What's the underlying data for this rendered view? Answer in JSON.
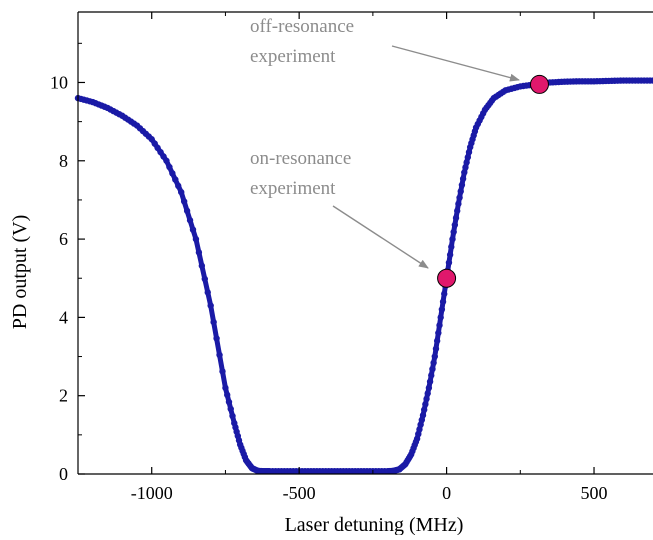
{
  "chart_data": {
    "type": "scatter",
    "title": "",
    "xlabel": "Laser detuning (MHz)",
    "ylabel": "PD output (V)",
    "xlim": [
      -1250,
      700
    ],
    "ylim": [
      0,
      11.8
    ],
    "x_ticks": [
      -1000,
      -500,
      0,
      500
    ],
    "x_tick_labels": [
      "-1000",
      "-500",
      "0",
      "500"
    ],
    "y_ticks": [
      0,
      2,
      4,
      6,
      8,
      10
    ],
    "y_tick_labels": [
      "0",
      "2",
      "4",
      "6",
      "8",
      "10"
    ],
    "grid": false,
    "legend": "none",
    "series": [
      {
        "color": "#1a1aa6",
        "marker": "dot",
        "x": [
          -1250,
          -1200,
          -1150,
          -1100,
          -1050,
          -1000,
          -950,
          -900,
          -850,
          -800,
          -750,
          -720,
          -700,
          -680,
          -660,
          -640,
          -620,
          -600,
          -550,
          -500,
          -450,
          -400,
          -350,
          -300,
          -250,
          -200,
          -180,
          -160,
          -140,
          -120,
          -100,
          -80,
          -60,
          -40,
          -20,
          0,
          20,
          40,
          60,
          80,
          100,
          130,
          160,
          200,
          250,
          300,
          350,
          400,
          450,
          500,
          550,
          600,
          650,
          700
        ],
        "y": [
          9.6,
          9.5,
          9.35,
          9.15,
          8.9,
          8.55,
          8.0,
          7.2,
          6.0,
          4.3,
          2.2,
          1.3,
          0.75,
          0.35,
          0.15,
          0.08,
          0.07,
          0.07,
          0.07,
          0.07,
          0.07,
          0.07,
          0.07,
          0.07,
          0.07,
          0.07,
          0.08,
          0.12,
          0.25,
          0.5,
          0.9,
          1.5,
          2.2,
          3.0,
          4.0,
          5.0,
          6.0,
          6.9,
          7.7,
          8.35,
          8.85,
          9.3,
          9.6,
          9.8,
          9.9,
          9.95,
          10.0,
          10.02,
          10.03,
          10.03,
          10.04,
          10.05,
          10.05,
          10.05
        ]
      }
    ],
    "highlight_points": [
      {
        "x": 0,
        "y": 5.0,
        "color": "#e0186c"
      },
      {
        "x": 315,
        "y": 9.95,
        "color": "#e0186c"
      }
    ],
    "annotations": [
      {
        "lines": [
          "off-resonance",
          "experiment"
        ],
        "target_x": 315,
        "target_y": 9.95
      },
      {
        "lines": [
          "on-resonance",
          "experiment"
        ],
        "target_x": 0,
        "target_y": 5.0
      }
    ],
    "colors": {
      "data": "#1a1aa6",
      "highlight": "#e0186c",
      "annotation": "#8c8c8c",
      "axis": "#000000"
    }
  }
}
